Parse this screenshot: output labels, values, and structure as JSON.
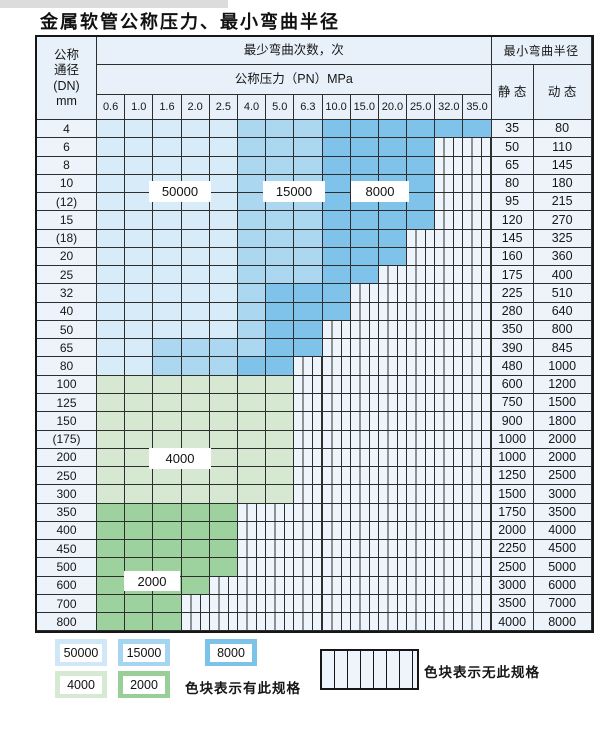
{
  "title": "金属软管公称压力、最小弯曲半径",
  "table": {
    "header": {
      "dn_lines": [
        "公称",
        "通径",
        "(DN)",
        "mm"
      ],
      "cycles_title": "最少弯曲次数，次",
      "pressure_title": "公称压力（PN）MPa",
      "radius_title": "最小弯曲半径",
      "static_label": "静 态",
      "dynamic_label": "动 态",
      "pressures": [
        "0.6",
        "1.0",
        "1.6",
        "2.0",
        "2.5",
        "4.0",
        "5.0",
        "6.3",
        "10.0",
        "15.0",
        "20.0",
        "25.0",
        "32.0",
        "35.0"
      ]
    },
    "rows": [
      {
        "dn": "4",
        "static": "35",
        "dynamic": "80",
        "zones": [
          "50000",
          "50000",
          "50000",
          "50000",
          "50000",
          "15000",
          "15000",
          "15000",
          "8000",
          "8000",
          "8000",
          "8000",
          "8000",
          "8000"
        ]
      },
      {
        "dn": "6",
        "static": "50",
        "dynamic": "110",
        "zones": [
          "50000",
          "50000",
          "50000",
          "50000",
          "50000",
          "15000",
          "15000",
          "15000",
          "8000",
          "8000",
          "8000",
          "8000",
          "x",
          "x"
        ]
      },
      {
        "dn": "8",
        "static": "65",
        "dynamic": "145",
        "zones": [
          "50000",
          "50000",
          "50000",
          "50000",
          "50000",
          "15000",
          "15000",
          "15000",
          "8000",
          "8000",
          "8000",
          "8000",
          "x",
          "x"
        ]
      },
      {
        "dn": "10",
        "static": "80",
        "dynamic": "180",
        "zones": [
          "50000",
          "50000",
          "50000",
          "50000",
          "50000",
          "15000",
          "15000",
          "15000",
          "8000",
          "8000",
          "8000",
          "8000",
          "x",
          "x"
        ]
      },
      {
        "dn": "(12)",
        "static": "95",
        "dynamic": "215",
        "zones": [
          "50000",
          "50000",
          "50000",
          "50000",
          "50000",
          "15000",
          "15000",
          "15000",
          "8000",
          "8000",
          "8000",
          "8000",
          "x",
          "x"
        ]
      },
      {
        "dn": "15",
        "static": "120",
        "dynamic": "270",
        "zones": [
          "50000",
          "50000",
          "50000",
          "50000",
          "50000",
          "15000",
          "15000",
          "15000",
          "8000",
          "8000",
          "8000",
          "8000",
          "x",
          "x"
        ]
      },
      {
        "dn": "(18)",
        "static": "145",
        "dynamic": "325",
        "zones": [
          "50000",
          "50000",
          "50000",
          "50000",
          "50000",
          "15000",
          "15000",
          "15000",
          "8000",
          "8000",
          "8000",
          "x",
          "x",
          "x"
        ]
      },
      {
        "dn": "20",
        "static": "160",
        "dynamic": "360",
        "zones": [
          "50000",
          "50000",
          "50000",
          "50000",
          "50000",
          "15000",
          "15000",
          "15000",
          "8000",
          "8000",
          "8000",
          "x",
          "x",
          "x"
        ]
      },
      {
        "dn": "25",
        "static": "175",
        "dynamic": "400",
        "zones": [
          "50000",
          "50000",
          "50000",
          "50000",
          "50000",
          "15000",
          "15000",
          "15000",
          "8000",
          "8000",
          "x",
          "x",
          "x",
          "x"
        ]
      },
      {
        "dn": "32",
        "static": "225",
        "dynamic": "510",
        "zones": [
          "50000",
          "50000",
          "50000",
          "50000",
          "50000",
          "15000",
          "8000",
          "8000",
          "8000",
          "x",
          "x",
          "x",
          "x",
          "x"
        ]
      },
      {
        "dn": "40",
        "static": "280",
        "dynamic": "640",
        "zones": [
          "50000",
          "50000",
          "50000",
          "50000",
          "50000",
          "15000",
          "8000",
          "8000",
          "8000",
          "x",
          "x",
          "x",
          "x",
          "x"
        ]
      },
      {
        "dn": "50",
        "static": "350",
        "dynamic": "800",
        "zones": [
          "50000",
          "50000",
          "50000",
          "50000",
          "50000",
          "15000",
          "8000",
          "8000",
          "x",
          "x",
          "x",
          "x",
          "x",
          "x"
        ]
      },
      {
        "dn": "65",
        "static": "390",
        "dynamic": "845",
        "zones": [
          "50000",
          "50000",
          "15000",
          "15000",
          "15000",
          "15000",
          "8000",
          "8000",
          "x",
          "x",
          "x",
          "x",
          "x",
          "x"
        ]
      },
      {
        "dn": "80",
        "static": "480",
        "dynamic": "1000",
        "zones": [
          "50000",
          "50000",
          "15000",
          "15000",
          "15000",
          "8000",
          "8000",
          "x",
          "x",
          "x",
          "x",
          "x",
          "x",
          "x"
        ]
      },
      {
        "dn": "100",
        "static": "600",
        "dynamic": "1200",
        "zones": [
          "4000",
          "4000",
          "4000",
          "4000",
          "4000",
          "4000",
          "4000",
          "x",
          "x",
          "x",
          "x",
          "x",
          "x",
          "x"
        ]
      },
      {
        "dn": "125",
        "static": "750",
        "dynamic": "1500",
        "zones": [
          "4000",
          "4000",
          "4000",
          "4000",
          "4000",
          "4000",
          "4000",
          "x",
          "x",
          "x",
          "x",
          "x",
          "x",
          "x"
        ]
      },
      {
        "dn": "150",
        "static": "900",
        "dynamic": "1800",
        "zones": [
          "4000",
          "4000",
          "4000",
          "4000",
          "4000",
          "4000",
          "4000",
          "x",
          "x",
          "x",
          "x",
          "x",
          "x",
          "x"
        ]
      },
      {
        "dn": "(175)",
        "static": "1000",
        "dynamic": "2000",
        "zones": [
          "4000",
          "4000",
          "4000",
          "4000",
          "4000",
          "4000",
          "4000",
          "x",
          "x",
          "x",
          "x",
          "x",
          "x",
          "x"
        ]
      },
      {
        "dn": "200",
        "static": "1000",
        "dynamic": "2000",
        "zones": [
          "4000",
          "4000",
          "4000",
          "4000",
          "4000",
          "4000",
          "4000",
          "x",
          "x",
          "x",
          "x",
          "x",
          "x",
          "x"
        ]
      },
      {
        "dn": "250",
        "static": "1250",
        "dynamic": "2500",
        "zones": [
          "4000",
          "4000",
          "4000",
          "4000",
          "4000",
          "4000",
          "4000",
          "x",
          "x",
          "x",
          "x",
          "x",
          "x",
          "x"
        ]
      },
      {
        "dn": "300",
        "static": "1500",
        "dynamic": "3000",
        "zones": [
          "4000",
          "4000",
          "4000",
          "4000",
          "4000",
          "4000",
          "4000",
          "x",
          "x",
          "x",
          "x",
          "x",
          "x",
          "x"
        ]
      },
      {
        "dn": "350",
        "static": "1750",
        "dynamic": "3500",
        "zones": [
          "2000",
          "2000",
          "2000",
          "2000",
          "2000",
          "x",
          "x",
          "x",
          "x",
          "x",
          "x",
          "x",
          "x",
          "x"
        ]
      },
      {
        "dn": "400",
        "static": "2000",
        "dynamic": "4000",
        "zones": [
          "2000",
          "2000",
          "2000",
          "2000",
          "2000",
          "x",
          "x",
          "x",
          "x",
          "x",
          "x",
          "x",
          "x",
          "x"
        ]
      },
      {
        "dn": "450",
        "static": "2250",
        "dynamic": "4500",
        "zones": [
          "2000",
          "2000",
          "2000",
          "2000",
          "2000",
          "x",
          "x",
          "x",
          "x",
          "x",
          "x",
          "x",
          "x",
          "x"
        ]
      },
      {
        "dn": "500",
        "static": "2500",
        "dynamic": "5000",
        "zones": [
          "2000",
          "2000",
          "2000",
          "2000",
          "2000",
          "x",
          "x",
          "x",
          "x",
          "x",
          "x",
          "x",
          "x",
          "x"
        ]
      },
      {
        "dn": "600",
        "static": "3000",
        "dynamic": "6000",
        "zones": [
          "2000",
          "2000",
          "2000",
          "2000",
          "x",
          "x",
          "x",
          "x",
          "x",
          "x",
          "x",
          "x",
          "x",
          "x"
        ]
      },
      {
        "dn": "700",
        "static": "3500",
        "dynamic": "7000",
        "zones": [
          "2000",
          "2000",
          "2000",
          "x",
          "x",
          "x",
          "x",
          "x",
          "x",
          "x",
          "x",
          "x",
          "x",
          "x"
        ]
      },
      {
        "dn": "800",
        "static": "4000",
        "dynamic": "8000",
        "zones": [
          "2000",
          "2000",
          "2000",
          "x",
          "x",
          "x",
          "x",
          "x",
          "x",
          "x",
          "x",
          "x",
          "x",
          "x"
        ]
      }
    ]
  },
  "zone_flags": {
    "f50000": "50000",
    "f15000": "15000",
    "f8000": "8000",
    "f4000": "4000",
    "f2000": "2000"
  },
  "legend": {
    "items": [
      {
        "label": "50000",
        "color": "#cfe7f7"
      },
      {
        "label": "15000",
        "color": "#a5d5f0"
      },
      {
        "label": "8000",
        "color": "#7cc3ea"
      },
      {
        "label": "4000",
        "color": "#d6e9d2"
      },
      {
        "label": "2000",
        "color": "#98cf98"
      }
    ],
    "has_spec_text": "色块表示有此规格",
    "no_spec_text": "色块表示无此规格"
  },
  "colors": {
    "zone_50000": "#d8ebf8",
    "zone_15000": "#abd7f1",
    "zone_8000": "#7fc3ea",
    "zone_4000": "#d7e8d2",
    "zone_2000": "#9dd19d",
    "no_spec_bg": "#eef4fb",
    "header_bg": "#e8f1f9",
    "grid_line": "#2e2e2e"
  }
}
